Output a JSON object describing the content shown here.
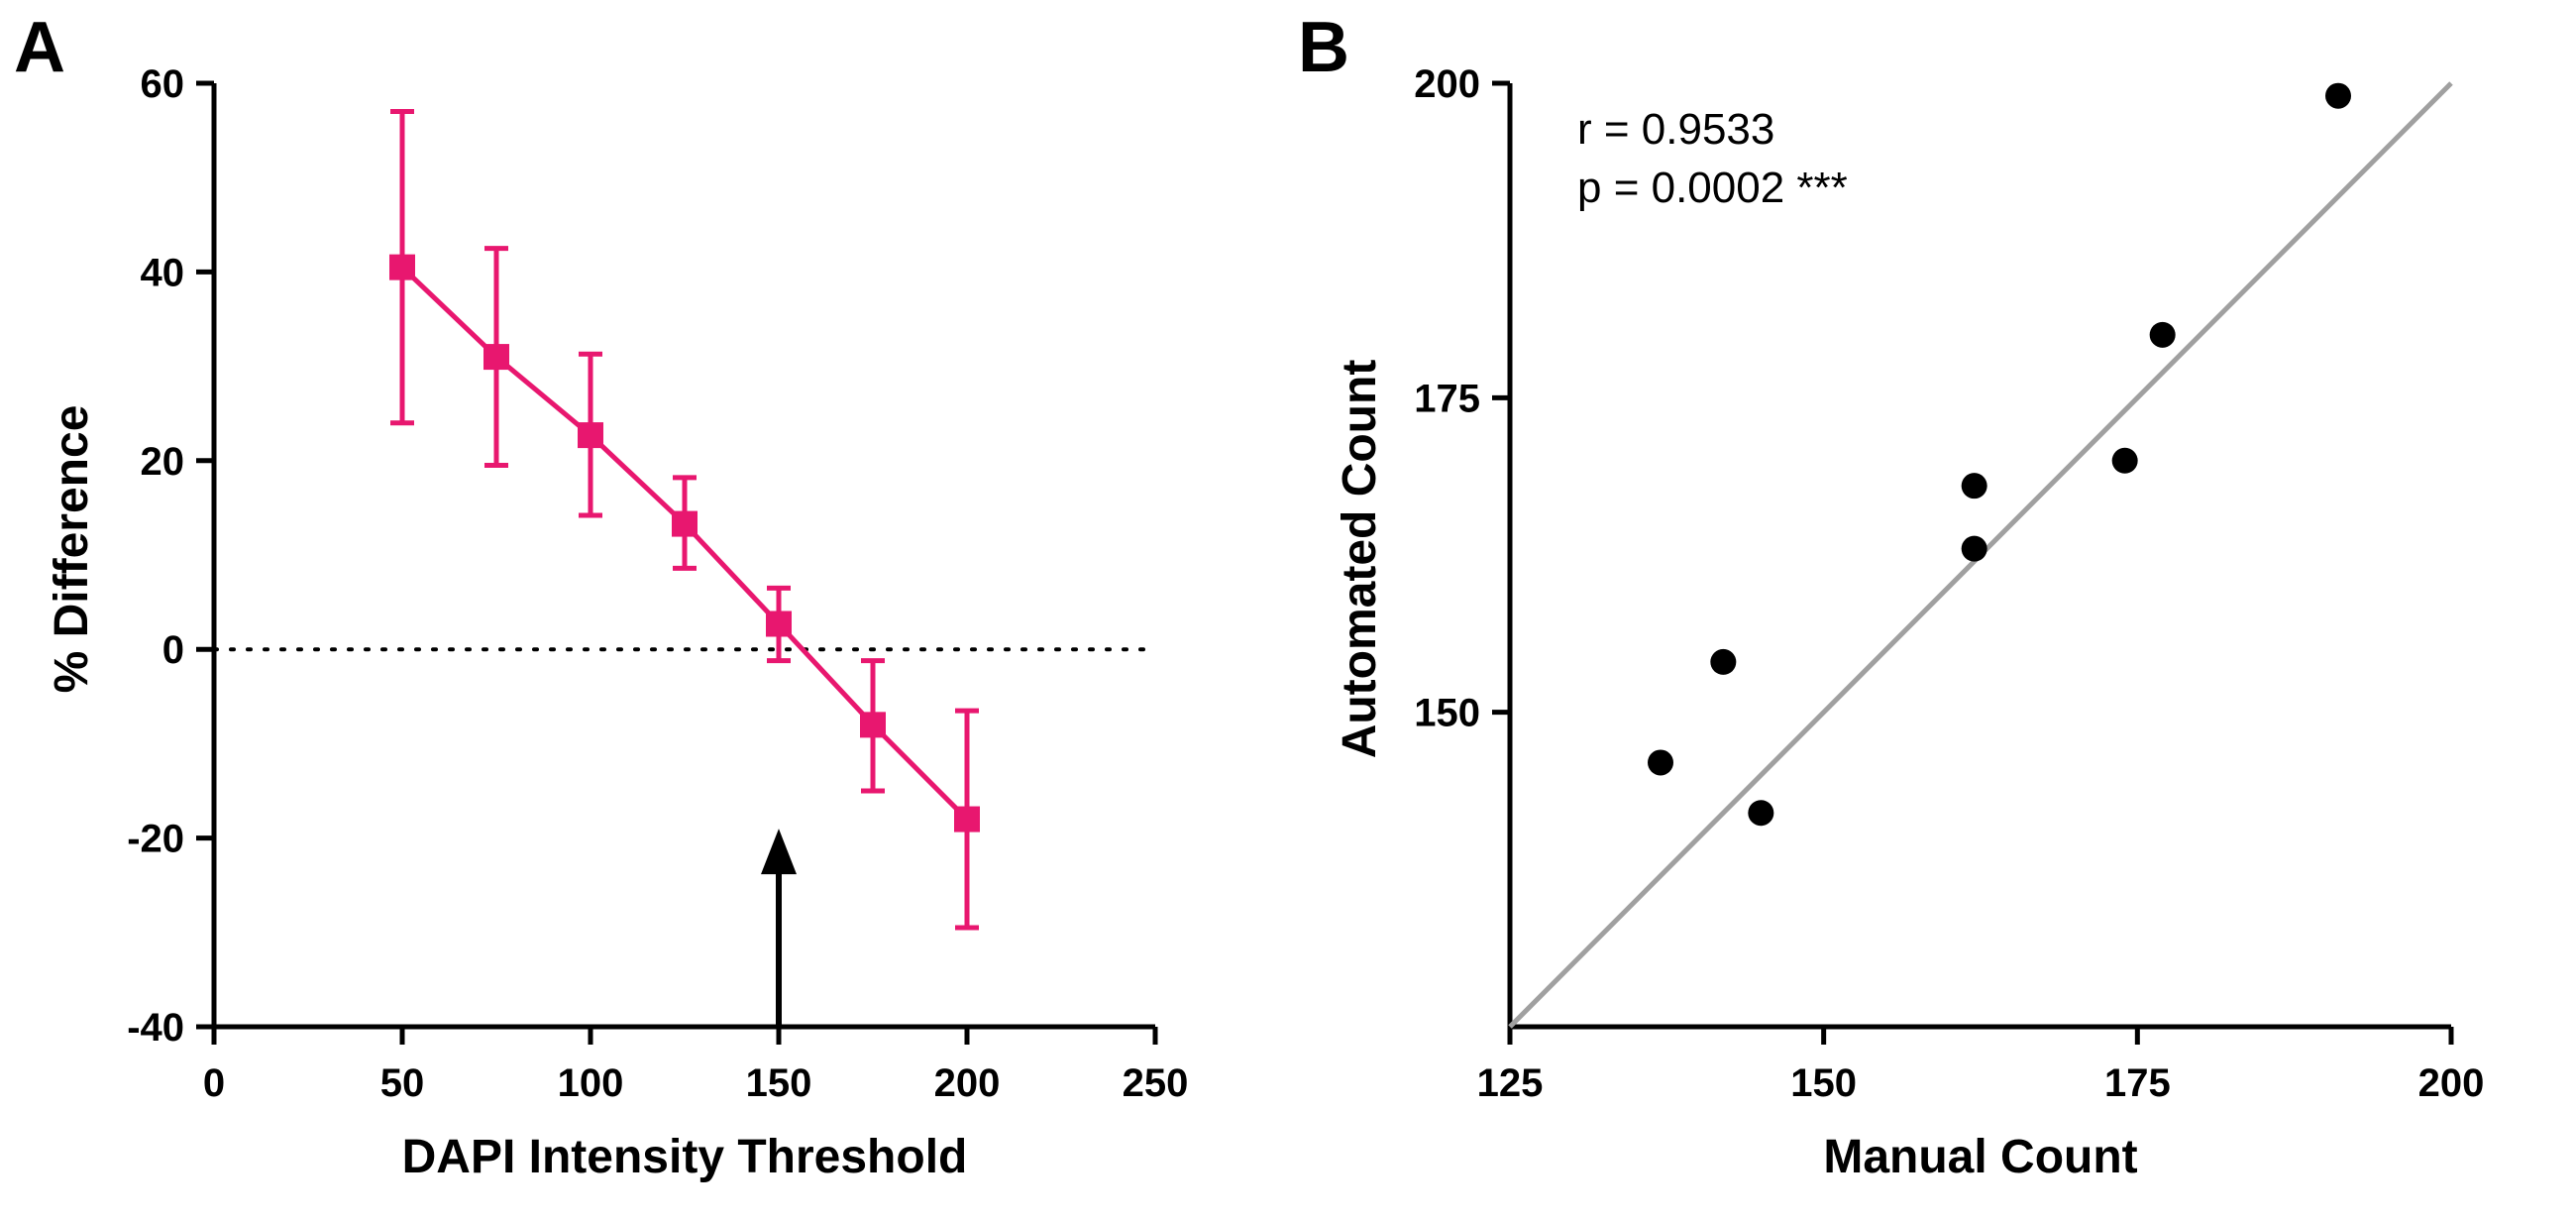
{
  "chart_data": [
    {
      "panel": "A",
      "type": "line",
      "xlabel": "DAPI Intensity Threshold",
      "ylabel": "% Difference",
      "xlim": [
        0,
        250
      ],
      "ylim": [
        -40,
        60
      ],
      "xticks": [
        "0",
        "50",
        "100",
        "150",
        "200",
        "250"
      ],
      "yticks": [
        "60",
        "40",
        "20",
        "0",
        "-20",
        "-40"
      ],
      "xtick_values": [
        0,
        50,
        100,
        150,
        200,
        250
      ],
      "ytick_values": [
        60,
        40,
        20,
        0,
        -20,
        -40
      ],
      "color": "#e8176f",
      "marker": "square",
      "series": [
        {
          "x": [
            50,
            75,
            100,
            125,
            150,
            175,
            200
          ],
          "y": [
            40.5,
            31,
            22.7,
            13.3,
            2.7,
            -8,
            -18
          ],
          "error_low": [
            24,
            19.5,
            14.2,
            8.6,
            -1.2,
            -15,
            -29.5
          ],
          "error_high": [
            57,
            42.5,
            31.3,
            18.2,
            6.5,
            -1.2,
            -6.5
          ]
        }
      ],
      "reference_line": {
        "y": 0,
        "style": "dotted"
      },
      "annotation_arrow": {
        "x": 150,
        "from_y": -40,
        "to_y": -19
      }
    },
    {
      "panel": "B",
      "type": "scatter",
      "xlabel": "Manual Count",
      "ylabel": "Automated Count",
      "xlim": [
        125,
        200
      ],
      "ylim": [
        125,
        200
      ],
      "xticks": [
        "125",
        "150",
        "175",
        "200"
      ],
      "yticks": [
        "200",
        "175",
        "150"
      ],
      "xtick_values": [
        125,
        150,
        175,
        200
      ],
      "ytick_values": [
        200,
        175,
        150
      ],
      "points": [
        {
          "x": 137,
          "y": 146
        },
        {
          "x": 142,
          "y": 154
        },
        {
          "x": 145,
          "y": 142
        },
        {
          "x": 162,
          "y": 168
        },
        {
          "x": 162,
          "y": 163
        },
        {
          "x": 174,
          "y": 170
        },
        {
          "x": 177,
          "y": 180
        },
        {
          "x": 191,
          "y": 199
        }
      ],
      "identity_line": {
        "from": [
          125,
          125
        ],
        "to": [
          200,
          200
        ],
        "color": "#a0a0a0"
      },
      "annotations": [
        "r = 0.9533",
        "p = 0.0002 ***"
      ]
    }
  ]
}
